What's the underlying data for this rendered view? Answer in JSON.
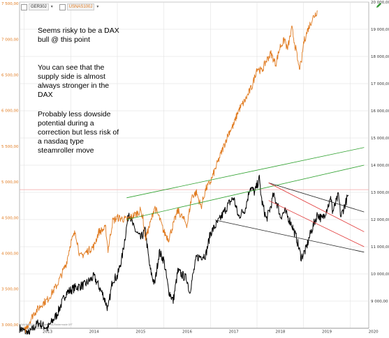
{
  "toolbar": {
    "symbols": [
      {
        "label": "GER30J",
        "icon": "dropdown-arrow-icon"
      },
      {
        "label": "USNAS100J",
        "icon": "dropdown-arrow-icon"
      }
    ],
    "edit_icon": "pencil-icon"
  },
  "annotations": [
    "Seems risky to be a DAX\nbull @ this point",
    "You can see that the\nsupply side is almost\nalways stronger in the\nDAX",
    "Probably less dowside\npotential during a\ncorrection but less risk of\na nasdaq type\nsteamroller move"
  ],
  "footer_note": "DAX/NASDAQ © finanzen.net/Tradermade GFT",
  "colors": {
    "dax": "#000000",
    "nasdaq": "#e07a1f",
    "green_channel": "#2ca02c",
    "red_channel": "#e03030",
    "black_channel": "#222222",
    "grid": "#dddddd",
    "left_axis_text": "#e07a1f",
    "hline": "#f2a6a6"
  },
  "chart_data": {
    "type": "line",
    "x_ticks": [
      "2013",
      "2014",
      "2015",
      "2016",
      "2017",
      "2018",
      "2019",
      "2020"
    ],
    "left_axis": {
      "ticks": [
        "3 000,00",
        "3 500,00",
        "4 000,00",
        "4 500,00",
        "5 000,00",
        "5 500,00",
        "6 000,00",
        "6 500,00",
        "7 000,00",
        "7 500,00"
      ],
      "series": "NASDAQ",
      "ylim": [
        2950,
        7520
      ]
    },
    "right_axis": {
      "ticks": [
        "9 000,00",
        "10 000,00",
        "11 000,00",
        "12 000,00",
        "13 000,00",
        "14 000,00",
        "15 000,00",
        "16 000,00",
        "17 000,00",
        "18 000,00",
        "19 000,00",
        "20 000,00"
      ],
      "series": "DAX",
      "ylim": [
        8000,
        20000
      ]
    },
    "series": [
      {
        "key": "dax",
        "axis": "right",
        "points": [
          [
            2012.9,
            8000
          ],
          [
            2013.1,
            7800
          ],
          [
            2013.3,
            8200
          ],
          [
            2013.5,
            8000
          ],
          [
            2013.7,
            8500
          ],
          [
            2013.9,
            9300
          ],
          [
            2014.1,
            9500
          ],
          [
            2014.3,
            9600
          ],
          [
            2014.5,
            9900
          ],
          [
            2014.7,
            9200
          ],
          [
            2014.8,
            8700
          ],
          [
            2014.9,
            9800
          ],
          [
            2015.0,
            9900
          ],
          [
            2015.1,
            10600
          ],
          [
            2015.25,
            12300
          ],
          [
            2015.35,
            11700
          ],
          [
            2015.5,
            11300
          ],
          [
            2015.6,
            11600
          ],
          [
            2015.7,
            10200
          ],
          [
            2015.8,
            9600
          ],
          [
            2015.9,
            10800
          ],
          [
            2016.0,
            10500
          ],
          [
            2016.1,
            9400
          ],
          [
            2016.2,
            9000
          ],
          [
            2016.3,
            10100
          ],
          [
            2016.5,
            9800
          ],
          [
            2016.55,
            9300
          ],
          [
            2016.7,
            10600
          ],
          [
            2016.9,
            10700
          ],
          [
            2017.0,
            11500
          ],
          [
            2017.2,
            12000
          ],
          [
            2017.4,
            12600
          ],
          [
            2017.5,
            12800
          ],
          [
            2017.6,
            12100
          ],
          [
            2017.75,
            12400
          ],
          [
            2017.85,
            13200
          ],
          [
            2017.95,
            13000
          ],
          [
            2018.05,
            13500
          ],
          [
            2018.1,
            12700
          ],
          [
            2018.2,
            12000
          ],
          [
            2018.3,
            12500
          ],
          [
            2018.35,
            12900
          ],
          [
            2018.45,
            12500
          ],
          [
            2018.5,
            12100
          ],
          [
            2018.6,
            12300
          ],
          [
            2018.75,
            11800
          ],
          [
            2018.85,
            11300
          ],
          [
            2018.95,
            10600
          ],
          [
            2019.05,
            10900
          ],
          [
            2019.15,
            11500
          ],
          [
            2019.3,
            12200
          ],
          [
            2019.4,
            12000
          ],
          [
            2019.5,
            12400
          ],
          [
            2019.6,
            12800
          ],
          [
            2019.62,
            12250
          ],
          [
            2019.75,
            12900
          ],
          [
            2019.8,
            12100
          ],
          [
            2019.9,
            12600
          ],
          [
            2019.96,
            12900
          ]
        ]
      },
      {
        "key": "nasdaq",
        "axis": "left",
        "points": [
          [
            2013.0,
            2900
          ],
          [
            2013.2,
            3150
          ],
          [
            2013.4,
            3300
          ],
          [
            2013.5,
            3350
          ],
          [
            2013.7,
            3550
          ],
          [
            2013.9,
            3850
          ],
          [
            2014.0,
            4150
          ],
          [
            2014.1,
            4300
          ],
          [
            2014.2,
            3950
          ],
          [
            2014.3,
            4000
          ],
          [
            2014.5,
            4100
          ],
          [
            2014.6,
            4300
          ],
          [
            2014.75,
            4350
          ],
          [
            2014.8,
            4050
          ],
          [
            2014.9,
            4450
          ],
          [
            2015.0,
            4500
          ],
          [
            2015.2,
            4470
          ],
          [
            2015.4,
            4550
          ],
          [
            2015.5,
            4600
          ],
          [
            2015.55,
            4500
          ],
          [
            2015.6,
            4200
          ],
          [
            2015.7,
            4400
          ],
          [
            2015.8,
            4650
          ],
          [
            2015.9,
            4500
          ],
          [
            2016.0,
            4300
          ],
          [
            2016.1,
            4200
          ],
          [
            2016.3,
            4600
          ],
          [
            2016.5,
            4400
          ],
          [
            2016.6,
            4800
          ],
          [
            2016.7,
            4850
          ],
          [
            2016.8,
            4650
          ],
          [
            2016.9,
            4900
          ],
          [
            2017.0,
            5000
          ],
          [
            2017.2,
            5350
          ],
          [
            2017.4,
            5700
          ],
          [
            2017.5,
            5800
          ],
          [
            2017.6,
            6000
          ],
          [
            2017.75,
            6150
          ],
          [
            2017.9,
            6350
          ],
          [
            2018.0,
            6600
          ],
          [
            2018.1,
            6550
          ],
          [
            2018.2,
            6700
          ],
          [
            2018.3,
            6800
          ],
          [
            2018.4,
            6650
          ],
          [
            2018.5,
            6900
          ],
          [
            2018.6,
            7000
          ],
          [
            2018.65,
            6850
          ],
          [
            2018.75,
            7150
          ],
          [
            2018.85,
            6800
          ],
          [
            2018.9,
            6600
          ],
          [
            2018.95,
            6650
          ],
          [
            2019.0,
            6950
          ],
          [
            2019.1,
            7150
          ],
          [
            2019.2,
            7300
          ],
          [
            2019.3,
            7400
          ]
        ]
      }
    ],
    "overlays": [
      {
        "type": "trendline",
        "color": "green",
        "from": [
          2015.2,
          12800
        ],
        "to": [
          2020.3,
          14650
        ]
      },
      {
        "type": "trendline",
        "color": "green",
        "from": [
          2015.2,
          12000
        ],
        "to": [
          2020.3,
          14000
        ]
      },
      {
        "type": "trendline",
        "color": "black",
        "from": [
          2018.25,
          13350
        ],
        "to": [
          2020.3,
          12280
        ]
      },
      {
        "type": "trendline",
        "color": "black",
        "from": [
          2017.1,
          11980
        ],
        "to": [
          2020.3,
          10800
        ]
      },
      {
        "type": "trendline",
        "color": "red",
        "from": [
          2018.25,
          13350
        ],
        "to": [
          2020.3,
          11550
        ]
      },
      {
        "type": "trendline",
        "color": "red",
        "from": [
          2018.25,
          12700
        ],
        "to": [
          2020.3,
          11000
        ]
      },
      {
        "type": "hline",
        "color": "pink",
        "value": 13100
      }
    ]
  }
}
